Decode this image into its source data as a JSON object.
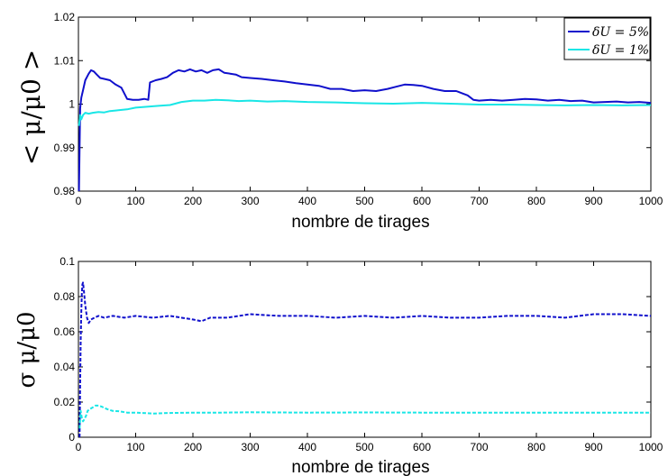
{
  "chart_data": [
    {
      "type": "line",
      "ylabel": "< μ/μ0 >",
      "xlabel": "nombre de tirages",
      "xlim": [
        0,
        1000
      ],
      "ylim": [
        0.98,
        1.02
      ],
      "xticks": [
        "0",
        "100",
        "200",
        "300",
        "400",
        "500",
        "600",
        "700",
        "800",
        "900",
        "1000"
      ],
      "yticks": [
        "0.98",
        "0.99",
        "1",
        "1.01",
        "1.02"
      ],
      "legend_position": "top-right",
      "grid": false,
      "series": [
        {
          "name": "δU = 5%",
          "color": "#1010cc",
          "style": "solid",
          "x": [
            1,
            3,
            5,
            8,
            12,
            18,
            22,
            27,
            32,
            38,
            45,
            55,
            65,
            75,
            85,
            95,
            105,
            115,
            122,
            125,
            135,
            145,
            155,
            165,
            175,
            185,
            195,
            205,
            215,
            225,
            235,
            245,
            255,
            265,
            275,
            285,
            300,
            320,
            340,
            360,
            380,
            400,
            420,
            440,
            460,
            480,
            500,
            520,
            540,
            555,
            570,
            585,
            600,
            620,
            640,
            660,
            670,
            680,
            690,
            700,
            720,
            740,
            760,
            780,
            800,
            820,
            840,
            860,
            880,
            900,
            920,
            940,
            960,
            980,
            1000
          ],
          "y": [
            0.98,
            0.999,
            1.0015,
            1.0032,
            1.0055,
            1.007,
            1.0078,
            1.0075,
            1.0068,
            1.006,
            1.0058,
            1.0055,
            1.0045,
            1.0038,
            1.0012,
            1.001,
            1.001,
            1.0012,
            1.001,
            1.005,
            1.0055,
            1.0058,
            1.0062,
            1.0072,
            1.0078,
            1.0075,
            1.008,
            1.0075,
            1.0078,
            1.0072,
            1.0078,
            1.008,
            1.0072,
            1.007,
            1.0068,
            1.0062,
            1.006,
            1.0058,
            1.0055,
            1.0052,
            1.0048,
            1.0045,
            1.0042,
            1.0035,
            1.0035,
            1.003,
            1.0032,
            1.003,
            1.0035,
            1.004,
            1.0045,
            1.0044,
            1.0042,
            1.0035,
            1.003,
            1.003,
            1.0025,
            1.002,
            1.001,
            1.0008,
            1.001,
            1.0008,
            1.001,
            1.0012,
            1.0011,
            1.0008,
            1.001,
            1.0007,
            1.0008,
            1.0004,
            1.0005,
            1.0006,
            1.0004,
            1.0005,
            1.0003
          ]
        },
        {
          "name": "δU = 1%",
          "color": "#19e6e6",
          "style": "solid",
          "x": [
            1,
            3,
            5,
            8,
            12,
            18,
            25,
            35,
            45,
            55,
            70,
            85,
            100,
            120,
            140,
            160,
            180,
            200,
            220,
            240,
            260,
            280,
            300,
            330,
            360,
            400,
            450,
            500,
            550,
            600,
            650,
            700,
            750,
            800,
            850,
            900,
            950,
            1000
          ],
          "y": [
            0.995,
            0.9975,
            0.9965,
            0.9975,
            0.998,
            0.9978,
            0.998,
            0.9982,
            0.9981,
            0.9984,
            0.9986,
            0.9988,
            0.9992,
            0.9994,
            0.9996,
            0.9998,
            1.0005,
            1.0008,
            1.0008,
            1.001,
            1.0009,
            1.0007,
            1.0008,
            1.0006,
            1.0007,
            1.0005,
            1.0004,
            1.0002,
            1.0001,
            1.0003,
            1.0001,
            0.9999,
            0.9999,
            0.9998,
            0.9997,
            0.9998,
            0.9997,
            0.9998
          ]
        }
      ]
    },
    {
      "type": "line",
      "ylabel": "σ μ/μ0",
      "xlabel": "nombre de tirages",
      "xlim": [
        0,
        1000
      ],
      "ylim": [
        0,
        0.1
      ],
      "xticks": [
        "0",
        "100",
        "200",
        "300",
        "400",
        "500",
        "600",
        "700",
        "800",
        "900",
        "1000"
      ],
      "yticks": [
        "0",
        "0.02",
        "0.04",
        "0.06",
        "0.08",
        "0.1"
      ],
      "grid": false,
      "series": [
        {
          "color": "#1010cc",
          "style": "dashed",
          "x": [
            2,
            3,
            4,
            5,
            6,
            7,
            8,
            10,
            12,
            15,
            18,
            22,
            28,
            35,
            45,
            60,
            80,
            100,
            130,
            160,
            200,
            215,
            230,
            260,
            300,
            350,
            400,
            450,
            500,
            550,
            600,
            650,
            700,
            750,
            800,
            850,
            900,
            950,
            1000
          ],
          "y": [
            0.0,
            0.03,
            0.055,
            0.072,
            0.082,
            0.087,
            0.088,
            0.082,
            0.075,
            0.068,
            0.065,
            0.067,
            0.068,
            0.069,
            0.068,
            0.069,
            0.068,
            0.069,
            0.068,
            0.069,
            0.067,
            0.066,
            0.068,
            0.068,
            0.07,
            0.069,
            0.069,
            0.068,
            0.069,
            0.068,
            0.069,
            0.068,
            0.068,
            0.069,
            0.069,
            0.068,
            0.07,
            0.07,
            0.069
          ]
        },
        {
          "color": "#19e6e6",
          "style": "dashed",
          "x": [
            2,
            4,
            6,
            8,
            10,
            13,
            16,
            20,
            25,
            30,
            35,
            40,
            50,
            60,
            70,
            85,
            100,
            130,
            160,
            200,
            250,
            300,
            400,
            500,
            600,
            700,
            800,
            900,
            1000
          ],
          "y": [
            0.005,
            0.015,
            0.011,
            0.009,
            0.01,
            0.012,
            0.015,
            0.016,
            0.017,
            0.018,
            0.018,
            0.0175,
            0.016,
            0.015,
            0.0148,
            0.014,
            0.014,
            0.0135,
            0.0138,
            0.014,
            0.014,
            0.0142,
            0.014,
            0.0141,
            0.014,
            0.014,
            0.014,
            0.014,
            0.014
          ]
        }
      ]
    }
  ]
}
